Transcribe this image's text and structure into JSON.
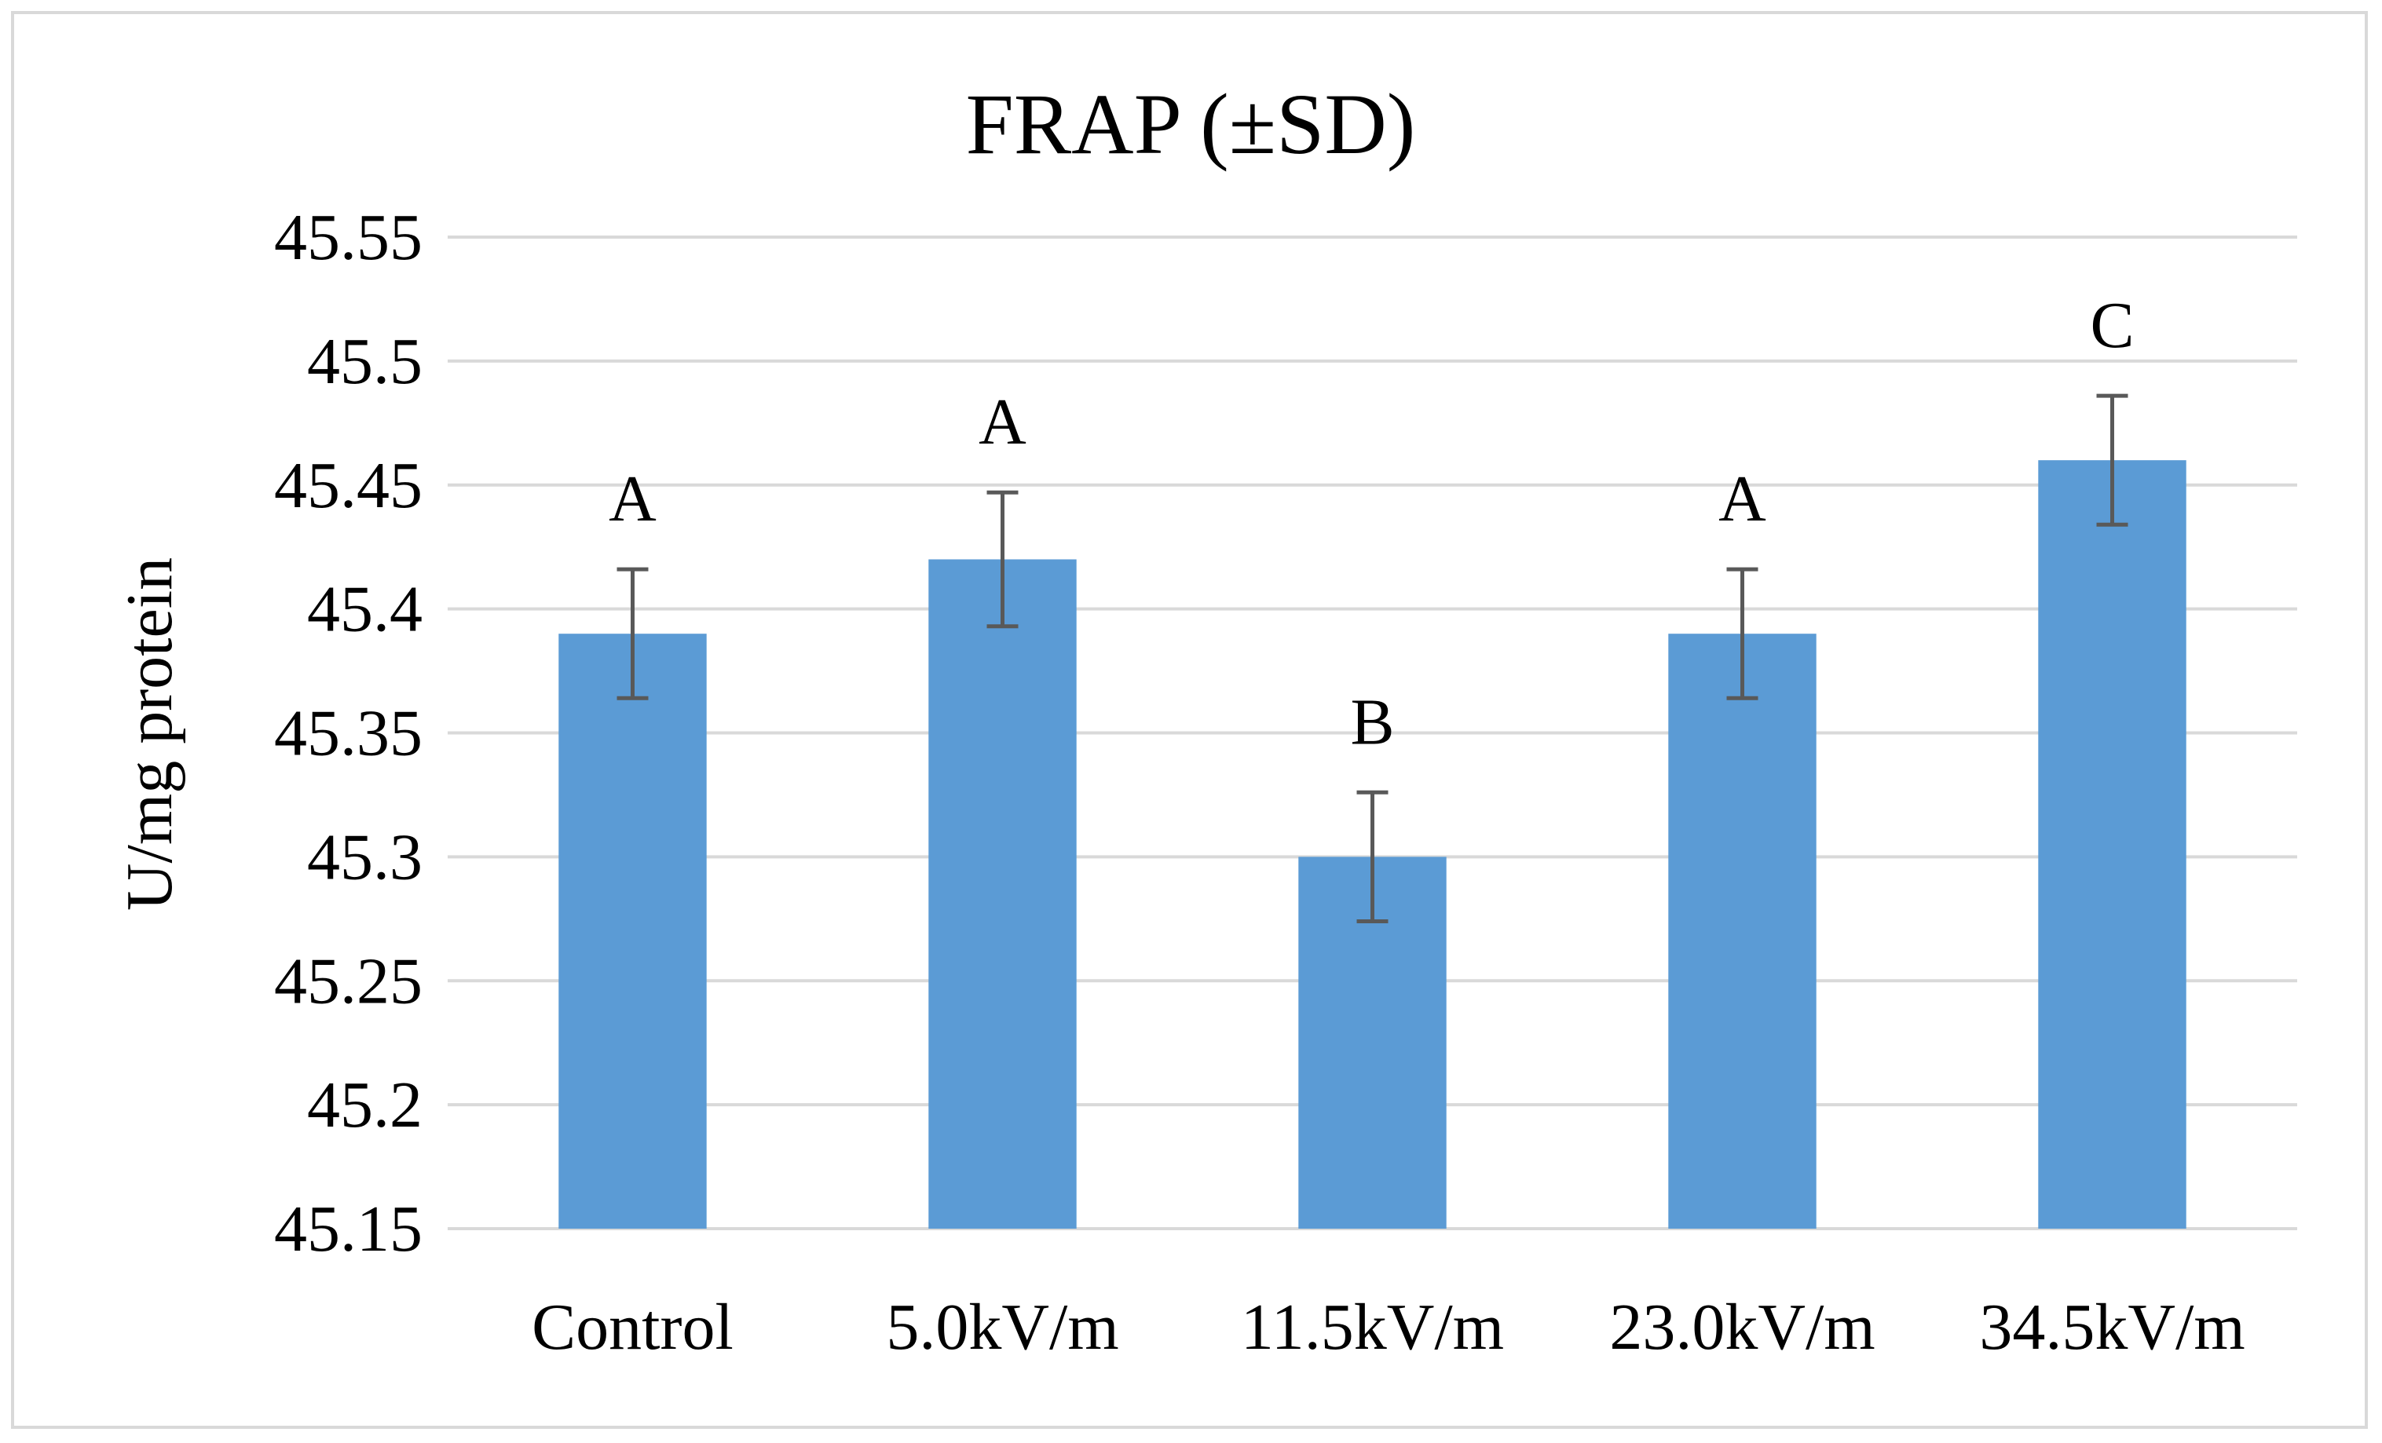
{
  "chart_data": {
    "type": "bar",
    "title": "FRAP (±SD)",
    "xlabel": "",
    "ylabel": "U/mg protein",
    "ylim": [
      45.15,
      45.55
    ],
    "yticks": [
      45.15,
      45.2,
      45.25,
      45.3,
      45.35,
      45.4,
      45.45,
      45.5,
      45.55
    ],
    "ytick_labels": [
      "45.15",
      "45.2",
      "45.25",
      "45.3",
      "45.35",
      "45.4",
      "45.45",
      "45.5",
      "45.55"
    ],
    "grid": true,
    "legend": "none",
    "categories": [
      "Control",
      "5.0kV/m",
      "11.5kV/m",
      "23.0kV/m",
      "34.5kV/m"
    ],
    "values": [
      45.39,
      45.42,
      45.3,
      45.39,
      45.46
    ],
    "errors": [
      0.026,
      0.027,
      0.026,
      0.026,
      0.026
    ],
    "significance_letters": [
      "A",
      "A",
      "B",
      "A",
      "C"
    ],
    "colors": {
      "bar": "#5b9bd5",
      "grid": "#d9d9d9",
      "error_bar": "#595959",
      "frame": "#d9d9d9"
    }
  }
}
